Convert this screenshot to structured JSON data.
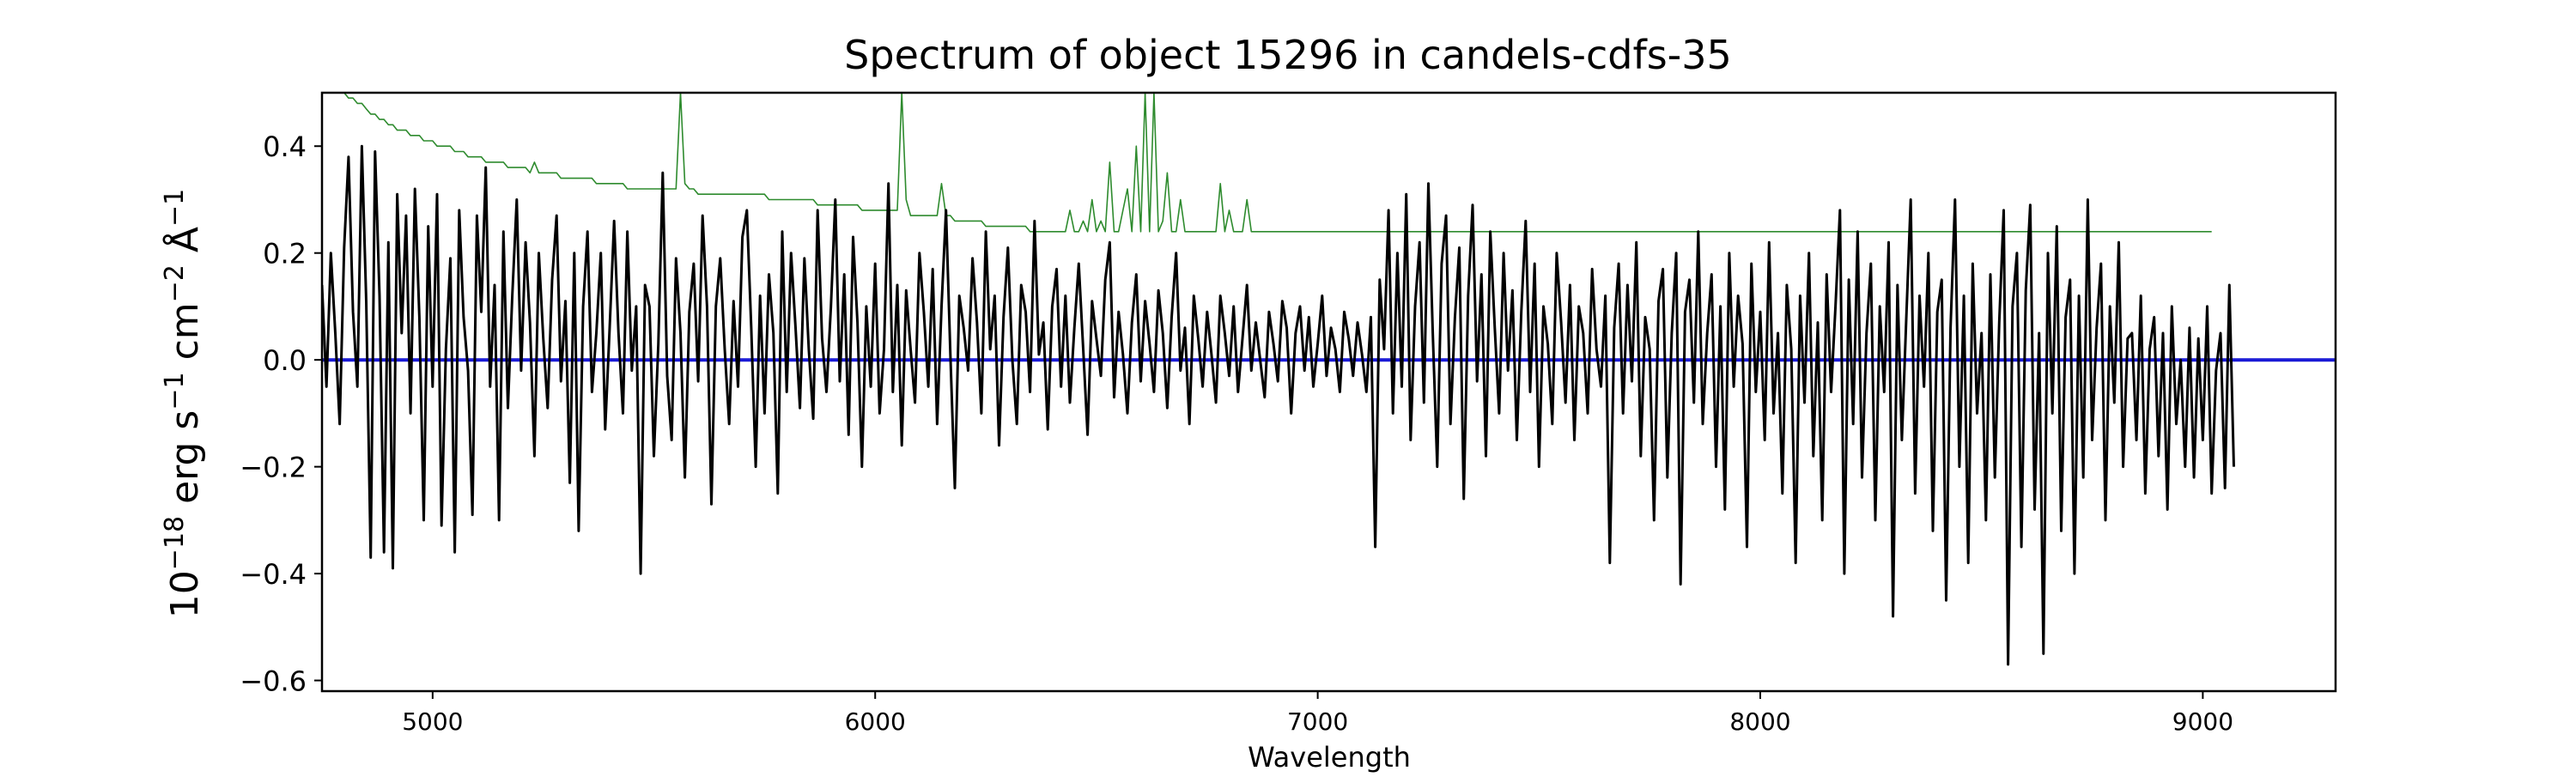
{
  "chart_data": {
    "type": "line",
    "title": "Spectrum of object 15296 in candels-cdfs-35",
    "xlabel": "Wavelength",
    "ylabel_parts": {
      "base": "10",
      "exp1": "−18",
      "mid1": " erg s",
      "exp2": "−1",
      "mid2": " cm",
      "exp3": "−2",
      "mid3": " Å",
      "exp4": "−1"
    },
    "xlim": [
      4750,
      9300
    ],
    "ylim": [
      -0.62,
      0.5
    ],
    "xticks": [
      5000,
      6000,
      7000,
      8000,
      9000
    ],
    "xtick_labels": [
      "5000",
      "6000",
      "7000",
      "8000",
      "9000"
    ],
    "yticks": [
      0.4,
      0.2,
      0.0,
      -0.2,
      -0.4,
      -0.6
    ],
    "ytick_labels": [
      "0.4",
      "0.2",
      "0.0",
      "−0.2",
      "−0.4",
      "−0.6"
    ],
    "grid": false,
    "series": [
      {
        "role": "flux",
        "color": "#000000",
        "x_start": 4750,
        "x_end": 9300,
        "x_step": 10,
        "values": [
          0.14,
          -0.05,
          0.2,
          0.05,
          -0.12,
          0.21,
          0.38,
          0.09,
          -0.05,
          0.4,
          0.11,
          -0.37,
          0.39,
          0.12,
          -0.36,
          0.22,
          -0.39,
          0.31,
          0.05,
          0.27,
          -0.1,
          0.32,
          0.08,
          -0.3,
          0.25,
          -0.05,
          0.31,
          -0.31,
          0.02,
          0.19,
          -0.36,
          0.28,
          0.08,
          -0.02,
          -0.29,
          0.27,
          0.09,
          0.36,
          -0.05,
          0.14,
          -0.3,
          0.24,
          -0.09,
          0.12,
          0.3,
          -0.02,
          0.22,
          0.07,
          -0.18,
          0.2,
          0.04,
          -0.09,
          0.15,
          0.27,
          -0.04,
          0.11,
          -0.23,
          0.2,
          -0.32,
          0.1,
          0.24,
          -0.06,
          0.05,
          0.2,
          -0.13,
          0.06,
          0.26,
          0.05,
          -0.1,
          0.24,
          -0.02,
          0.1,
          -0.4,
          0.14,
          0.1,
          -0.18,
          0.03,
          0.35,
          -0.03,
          -0.15,
          0.19,
          0.05,
          -0.22,
          0.09,
          0.18,
          -0.04,
          0.27,
          0.1,
          -0.27,
          0.1,
          0.19,
          0.02,
          -0.12,
          0.11,
          -0.05,
          0.23,
          0.28,
          0.06,
          -0.2,
          0.12,
          -0.1,
          0.16,
          0.05,
          -0.25,
          0.24,
          -0.06,
          0.2,
          0.06,
          -0.09,
          0.19,
          0.02,
          -0.11,
          0.28,
          0.04,
          -0.06,
          0.1,
          0.3,
          -0.04,
          0.16,
          -0.14,
          0.23,
          0.07,
          -0.2,
          0.1,
          -0.05,
          0.18,
          -0.1,
          0.02,
          0.33,
          -0.06,
          0.14,
          -0.16,
          0.13,
          0.02,
          -0.08,
          0.2,
          0.09,
          -0.05,
          0.17,
          -0.12,
          0.1,
          0.28,
          0.01,
          -0.24,
          0.12,
          0.06,
          -0.02,
          0.19,
          0.07,
          -0.1,
          0.24,
          0.02,
          0.12,
          -0.16,
          0.08,
          0.21,
          0.0,
          -0.12,
          0.14,
          0.09,
          -0.06,
          0.26,
          0.01,
          0.07,
          -0.13,
          0.1,
          0.17,
          -0.05,
          0.12,
          -0.08,
          0.06,
          0.18,
          0.02,
          -0.14,
          0.11,
          0.04,
          -0.03,
          0.15,
          0.22,
          -0.07,
          0.09,
          0.01,
          -0.1,
          0.07,
          0.16,
          -0.04,
          0.11,
          0.03,
          -0.06,
          0.13,
          0.05,
          -0.09,
          0.08,
          0.2,
          -0.02,
          0.06,
          -0.12,
          0.12,
          0.04,
          -0.05,
          0.09,
          0.01,
          -0.08,
          0.12,
          0.05,
          -0.03,
          0.1,
          -0.06,
          0.04,
          0.14,
          -0.02,
          0.07,
          0.0,
          -0.07,
          0.09,
          0.03,
          -0.04,
          0.11,
          0.06,
          -0.1,
          0.05,
          0.1,
          -0.02,
          0.08,
          -0.05,
          0.03,
          0.12,
          -0.03,
          0.06,
          0.02,
          -0.06,
          0.09,
          0.04,
          -0.03,
          0.07,
          0.01,
          -0.06,
          0.08,
          -0.35,
          0.15,
          0.02,
          0.28,
          -0.1,
          0.2,
          -0.05,
          0.31,
          -0.15,
          0.1,
          0.22,
          -0.08,
          0.33,
          0.05,
          -0.2,
          0.18,
          0.27,
          -0.12,
          0.08,
          0.21,
          -0.26,
          0.12,
          0.29,
          -0.04,
          0.16,
          -0.18,
          0.24,
          0.06,
          -0.1,
          0.2,
          -0.02,
          0.13,
          -0.15,
          0.09,
          0.26,
          -0.06,
          0.18,
          -0.2,
          0.1,
          0.03,
          -0.12,
          0.2,
          0.07,
          -0.08,
          0.14,
          -0.15,
          0.1,
          0.05,
          -0.1,
          0.17,
          0.02,
          -0.05,
          0.12,
          -0.38,
          0.06,
          0.18,
          -0.1,
          0.14,
          -0.04,
          0.22,
          -0.18,
          0.08,
          0.02,
          -0.3,
          0.11,
          0.17,
          -0.22,
          0.05,
          0.2,
          -0.42,
          0.09,
          0.15,
          -0.08,
          0.24,
          -0.12,
          0.05,
          0.16,
          -0.2,
          0.1,
          -0.28,
          0.2,
          -0.05,
          0.12,
          0.03,
          -0.35,
          0.18,
          -0.06,
          0.09,
          -0.15,
          0.22,
          -0.1,
          0.05,
          -0.25,
          0.14,
          0.02,
          -0.38,
          0.12,
          -0.08,
          0.2,
          -0.18,
          0.07,
          -0.3,
          0.16,
          -0.06,
          0.1,
          0.28,
          -0.4,
          0.15,
          -0.12,
          0.24,
          -0.22,
          0.05,
          0.18,
          -0.3,
          0.1,
          -0.06,
          0.22,
          -0.48,
          0.14,
          -0.15,
          0.08,
          0.3,
          -0.25,
          0.12,
          -0.05,
          0.2,
          -0.32,
          0.09,
          0.15,
          -0.45,
          0.06,
          0.3,
          -0.2,
          0.12,
          -0.38,
          0.18,
          -0.1,
          0.05,
          -0.3,
          0.16,
          -0.22,
          0.07,
          0.28,
          -0.57,
          0.1,
          0.2,
          -0.35,
          0.13,
          0.29,
          -0.28,
          0.05,
          -0.55,
          0.2,
          -0.1,
          0.25,
          -0.32,
          0.08,
          0.15,
          -0.4,
          0.12,
          -0.22,
          0.3,
          -0.15,
          0.06,
          0.18,
          -0.3,
          0.1,
          -0.08,
          0.22,
          -0.2,
          0.04,
          0.05,
          -0.15,
          0.12,
          -0.25,
          0.02,
          0.08,
          -0.18,
          0.05,
          -0.28,
          0.1,
          -0.12,
          0.0,
          -0.2,
          0.06,
          -0.22,
          0.04,
          -0.15,
          0.1,
          -0.25,
          -0.02,
          0.05,
          -0.24,
          0.14,
          -0.2
        ]
      },
      {
        "role": "error",
        "color": "#2e8b2e",
        "x_start": 4750,
        "x_end": 9300,
        "x_step": 10,
        "values": [
          0.5,
          0.5,
          0.5,
          0.5,
          0.5,
          0.5,
          0.49,
          0.49,
          0.48,
          0.48,
          0.47,
          0.46,
          0.46,
          0.45,
          0.45,
          0.44,
          0.44,
          0.43,
          0.43,
          0.43,
          0.42,
          0.42,
          0.42,
          0.41,
          0.41,
          0.41,
          0.4,
          0.4,
          0.4,
          0.4,
          0.39,
          0.39,
          0.39,
          0.38,
          0.38,
          0.38,
          0.38,
          0.37,
          0.37,
          0.37,
          0.37,
          0.37,
          0.36,
          0.36,
          0.36,
          0.36,
          0.36,
          0.35,
          0.37,
          0.35,
          0.35,
          0.35,
          0.35,
          0.35,
          0.34,
          0.34,
          0.34,
          0.34,
          0.34,
          0.34,
          0.34,
          0.34,
          0.33,
          0.33,
          0.33,
          0.33,
          0.33,
          0.33,
          0.33,
          0.32,
          0.32,
          0.32,
          0.32,
          0.32,
          0.32,
          0.32,
          0.32,
          0.32,
          0.32,
          0.32,
          0.32,
          0.5,
          0.33,
          0.32,
          0.32,
          0.31,
          0.31,
          0.31,
          0.31,
          0.31,
          0.31,
          0.31,
          0.31,
          0.31,
          0.31,
          0.31,
          0.31,
          0.31,
          0.31,
          0.31,
          0.31,
          0.3,
          0.3,
          0.3,
          0.3,
          0.3,
          0.3,
          0.3,
          0.3,
          0.3,
          0.3,
          0.3,
          0.29,
          0.29,
          0.29,
          0.29,
          0.29,
          0.29,
          0.29,
          0.29,
          0.29,
          0.29,
          0.28,
          0.28,
          0.28,
          0.28,
          0.28,
          0.28,
          0.28,
          0.28,
          0.28,
          0.5,
          0.3,
          0.27,
          0.27,
          0.27,
          0.27,
          0.27,
          0.27,
          0.27,
          0.33,
          0.27,
          0.27,
          0.26,
          0.26,
          0.26,
          0.26,
          0.26,
          0.26,
          0.26,
          0.25,
          0.25,
          0.25,
          0.25,
          0.25,
          0.25,
          0.25,
          0.25,
          0.25,
          0.25,
          0.24,
          0.24,
          0.24,
          0.24,
          0.24,
          0.24,
          0.24,
          0.24,
          0.24,
          0.28,
          0.24,
          0.24,
          0.26,
          0.24,
          0.3,
          0.24,
          0.26,
          0.24,
          0.37,
          0.24,
          0.24,
          0.28,
          0.32,
          0.24,
          0.4,
          0.24,
          0.5,
          0.24,
          0.5,
          0.24,
          0.26,
          0.35,
          0.24,
          0.24,
          0.3,
          0.24,
          0.24,
          0.24,
          0.24,
          0.24,
          0.24,
          0.24,
          0.24,
          0.33,
          0.24,
          0.28,
          0.24,
          0.24,
          0.24,
          0.3,
          0.24,
          0.24,
          0.24,
          0.24,
          0.24,
          0.24,
          0.24,
          0.24,
          0.24,
          0.24,
          0.24,
          0.24,
          0.24,
          0.24,
          0.24,
          0.24,
          0.24,
          0.24,
          0.24,
          0.24,
          0.24,
          0.24,
          0.24,
          0.24,
          0.24,
          0.24,
          0.24,
          0.24,
          0.24,
          0.24,
          0.24,
          0.24,
          0.24,
          0.24,
          0.24,
          0.24,
          0.24,
          0.24,
          0.24,
          0.24,
          0.24,
          0.24,
          0.24,
          0.24,
          0.24,
          0.24,
          0.24,
          0.24,
          0.24,
          0.24,
          0.24,
          0.24,
          0.24,
          0.24,
          0.24,
          0.24,
          0.24,
          0.24,
          0.24,
          0.24,
          0.24,
          0.24,
          0.24,
          0.24,
          0.24,
          0.24,
          0.24,
          0.24,
          0.24,
          0.24,
          0.24,
          0.24,
          0.24,
          0.24,
          0.24,
          0.24,
          0.24,
          0.24,
          0.24,
          0.24,
          0.24,
          0.24,
          0.24,
          0.24,
          0.24,
          0.24,
          0.24,
          0.24,
          0.24,
          0.24,
          0.24,
          0.24,
          0.24,
          0.24,
          0.24,
          0.24,
          0.24,
          0.24,
          0.24,
          0.24,
          0.24,
          0.24,
          0.24,
          0.24,
          0.24,
          0.24,
          0.24,
          0.24,
          0.24,
          0.24,
          0.24,
          0.24,
          0.24,
          0.24,
          0.24,
          0.24,
          0.24,
          0.24,
          0.24,
          0.24,
          0.24,
          0.24,
          0.24,
          0.24,
          0.24,
          0.24,
          0.24,
          0.24,
          0.24,
          0.24,
          0.24,
          0.24,
          0.24,
          0.24,
          0.24,
          0.24,
          0.24,
          0.24,
          0.24,
          0.24,
          0.24,
          0.24,
          0.24,
          0.24,
          0.24,
          0.24,
          0.24,
          0.24,
          0.24,
          0.24,
          0.24,
          0.24,
          0.24,
          0.24,
          0.24,
          0.24,
          0.24,
          0.24,
          0.24,
          0.24,
          0.24,
          0.24,
          0.24,
          0.24,
          0.24,
          0.24,
          0.24,
          0.24,
          0.24,
          0.24,
          0.24,
          0.24,
          0.24,
          0.24,
          0.24,
          0.24,
          0.24,
          0.24,
          0.24,
          0.24,
          0.24,
          0.24,
          0.24,
          0.24,
          0.24,
          0.24,
          0.24,
          0.24,
          0.24,
          0.24,
          0.24,
          0.24,
          0.24,
          0.24,
          0.24,
          0.24,
          0.24,
          0.24,
          0.24,
          0.24,
          0.24,
          0.24,
          0.24,
          0.24,
          0.24,
          0.24,
          0.24,
          0.24,
          0.24,
          0.24,
          0.24,
          0.24,
          0.24,
          0.24,
          0.24,
          0.24,
          0.24,
          0.24
        ]
      },
      {
        "role": "model",
        "color": "#1a1ad6",
        "x": [
          4750,
          9300
        ],
        "values": [
          0.0,
          0.0
        ]
      }
    ]
  }
}
